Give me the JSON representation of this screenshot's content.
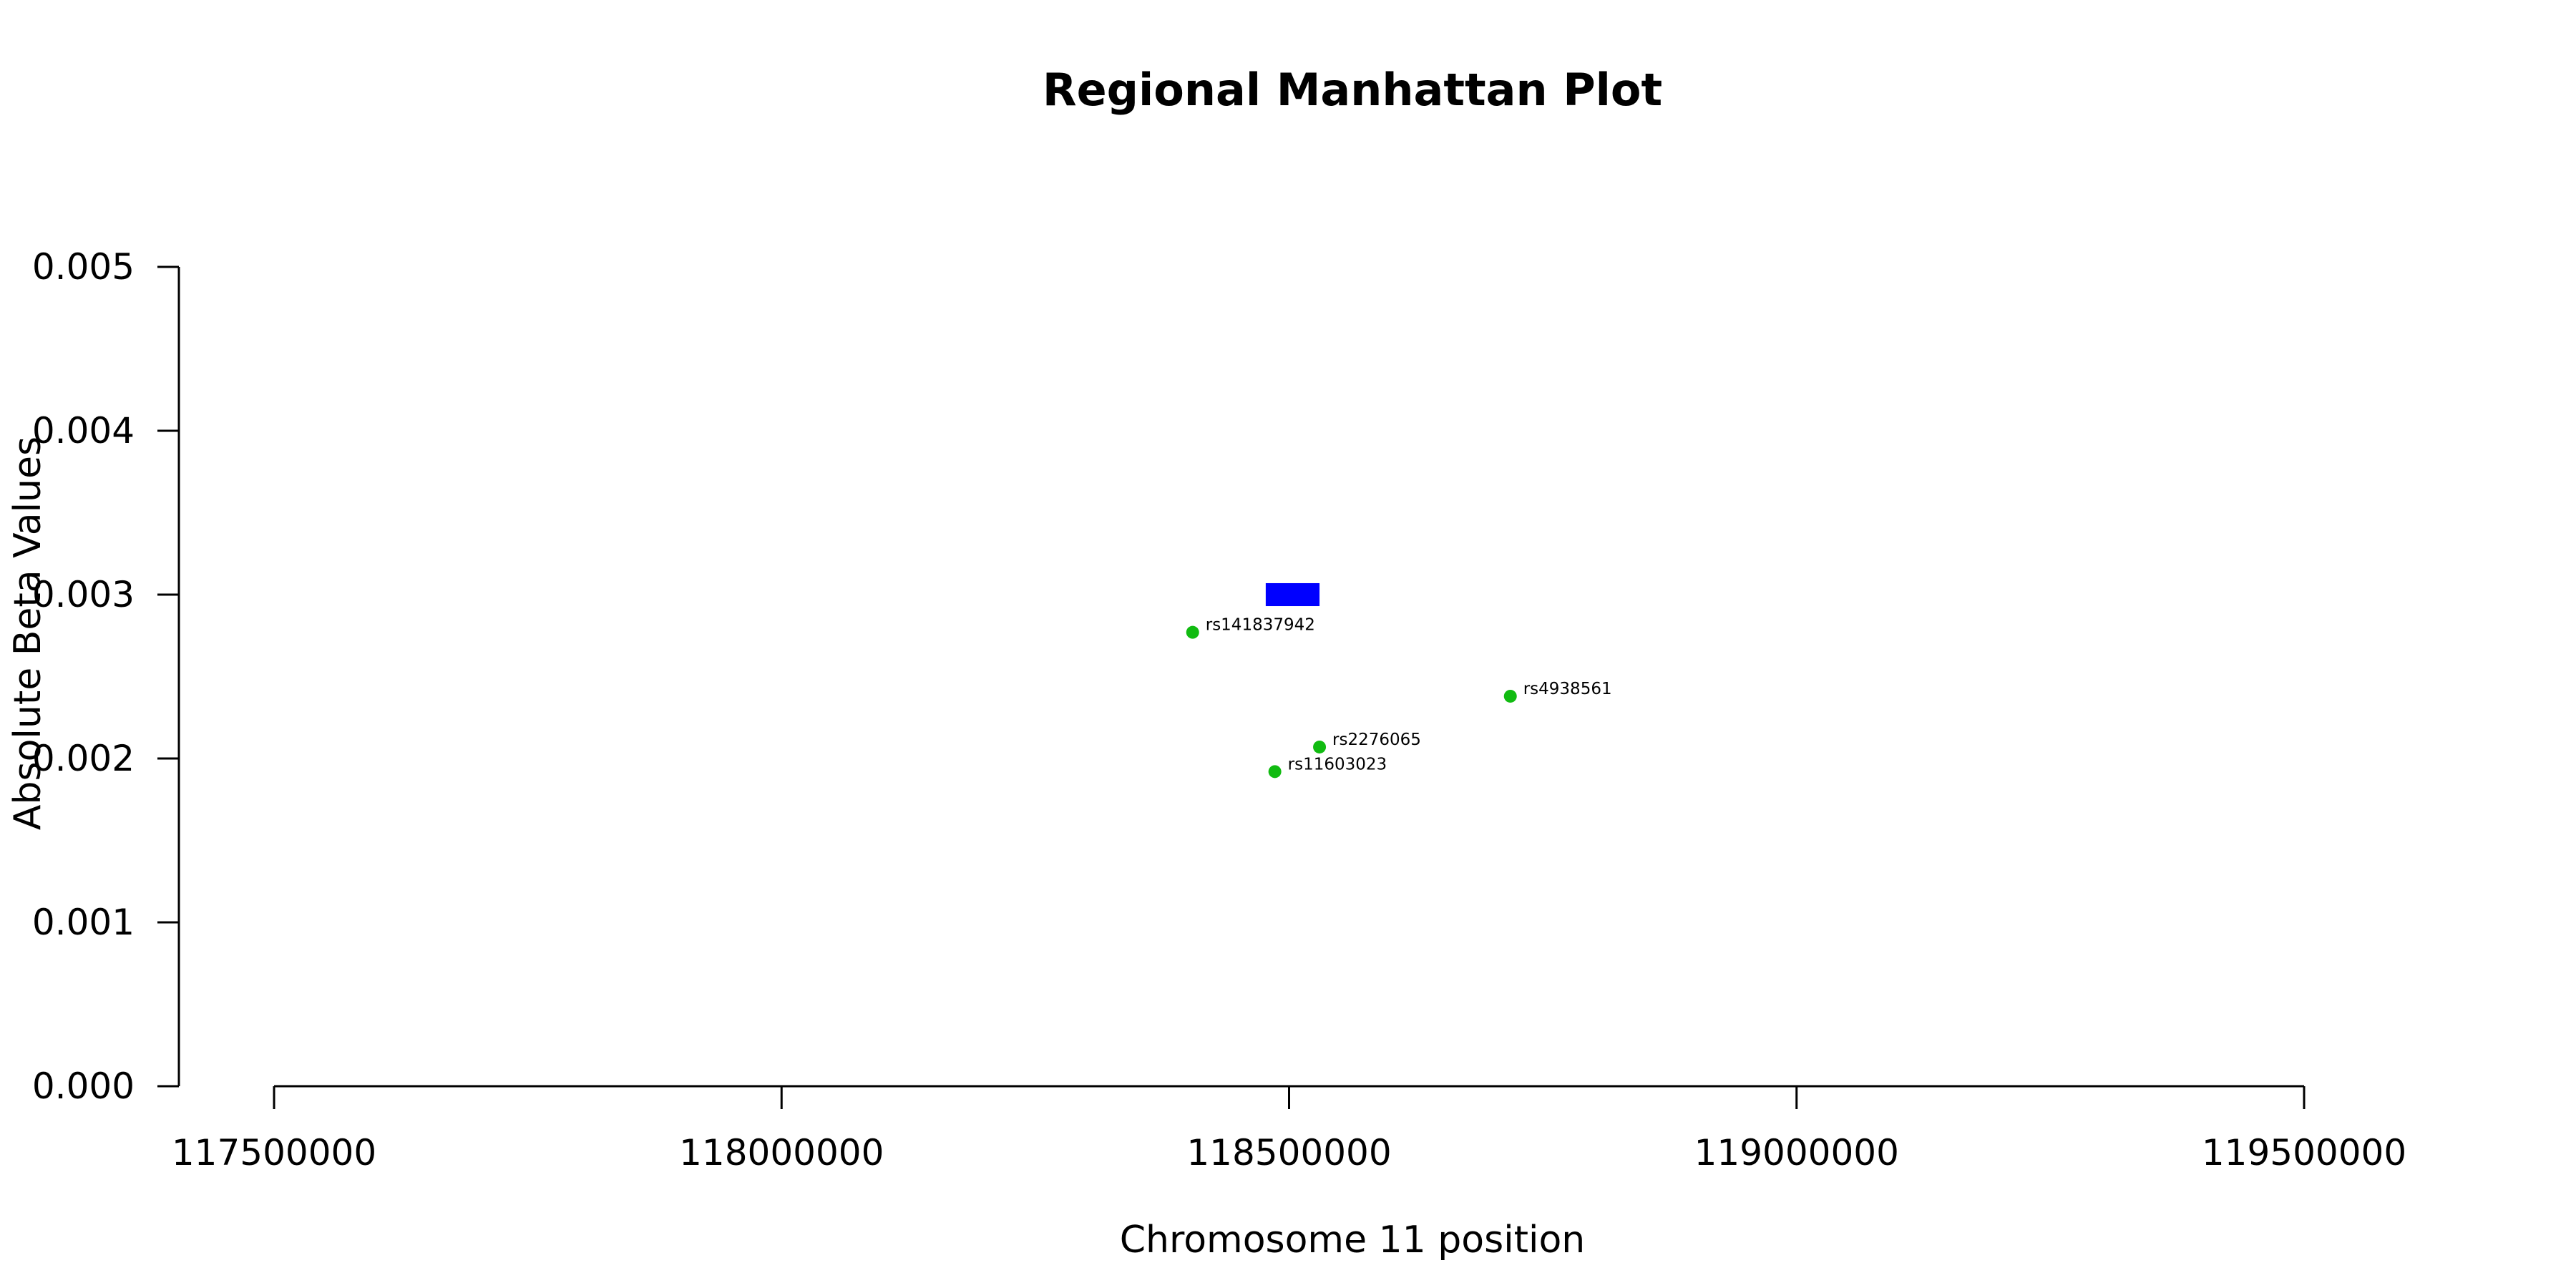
{
  "chart_data": {
    "type": "scatter",
    "title": "Regional Manhattan Plot",
    "xlabel": "Chromosome 11 position",
    "ylabel": "Absolute Beta Values",
    "xlim": [
      117500000,
      119500000
    ],
    "ylim": [
      0.0,
      0.005
    ],
    "x_ticks": [
      117500000,
      118000000,
      118500000,
      119000000,
      119500000
    ],
    "x_tick_labels": [
      "117500000",
      "118000000",
      "118500000",
      "119000000",
      "119500000"
    ],
    "y_ticks": [
      0.0,
      0.001,
      0.002,
      0.003,
      0.004,
      0.005
    ],
    "y_tick_labels": [
      "0.000",
      "0.001",
      "0.002",
      "0.003",
      "0.004",
      "0.005"
    ],
    "grid": false,
    "gene_region": {
      "x_start": 118477000,
      "x_end": 118530000,
      "y_min": 0.00293,
      "y_max": 0.00307,
      "color": "#0000ff"
    },
    "points_color": "#11bb11",
    "points": [
      {
        "label": "rs141837942",
        "x": 118405000,
        "y": 0.00277
      },
      {
        "label": "rs4938561",
        "x": 118718000,
        "y": 0.00238
      },
      {
        "label": "rs2276065",
        "x": 118530000,
        "y": 0.00207
      },
      {
        "label": "rs11603023",
        "x": 118486000,
        "y": 0.00192
      }
    ]
  }
}
